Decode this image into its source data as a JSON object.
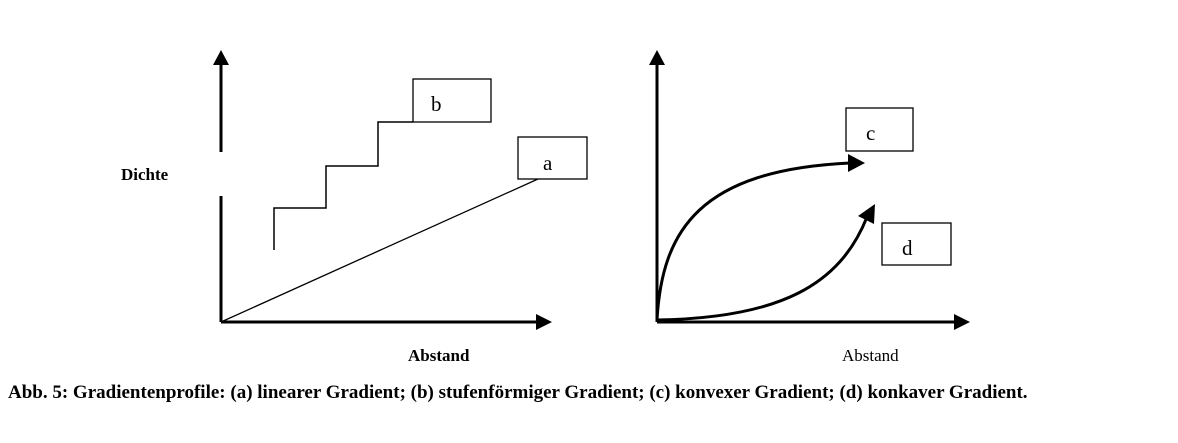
{
  "left_diagram": {
    "y_axis_label": "Dichte",
    "x_axis_label": "Abstand",
    "labels": {
      "a": "a",
      "b": "b"
    }
  },
  "right_diagram": {
    "x_axis_label": "Abstand",
    "labels": {
      "c": "c",
      "d": "d"
    }
  },
  "caption": {
    "text": "Abb. 5: Gradientenprofile: (a) linearer Gradient; (b) stufenförmiger Gradient; (c) konvexer Gradient; (d) konkaver Gradient."
  }
}
